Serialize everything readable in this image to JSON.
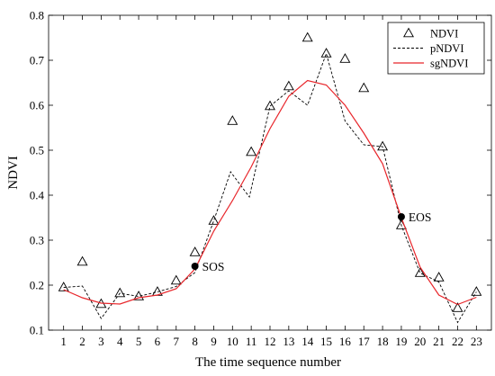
{
  "chart_data": {
    "type": "line",
    "xlabel": "The time sequence number",
    "ylabel": "NDVI",
    "xlim": [
      0.2,
      23.8
    ],
    "ylim": [
      0.1,
      0.8
    ],
    "x_ticks": [
      1,
      2,
      3,
      4,
      5,
      6,
      7,
      8,
      9,
      10,
      11,
      12,
      13,
      14,
      15,
      16,
      17,
      18,
      19,
      20,
      21,
      22,
      23
    ],
    "y_ticks": [
      0.1,
      0.2,
      0.3,
      0.4,
      0.5,
      0.6,
      0.7,
      0.8
    ],
    "y_tick_labels": [
      "0.1",
      "0.2",
      "0.3",
      "0.4",
      "0.5",
      "0.6",
      "0.7",
      "0.8"
    ],
    "grid": false,
    "legend_position": "top-right",
    "series": [
      {
        "name": "NDVI",
        "style": "triangle-markers",
        "color": "#000000",
        "x": [
          1,
          2,
          3,
          4,
          5,
          6,
          7,
          8,
          9,
          10,
          11,
          12,
          13,
          14,
          15,
          16,
          17,
          18,
          19,
          20,
          21,
          22,
          23
        ],
        "values": [
          0.195,
          0.252,
          0.158,
          0.182,
          0.175,
          0.185,
          0.21,
          0.273,
          0.343,
          0.565,
          0.496,
          0.598,
          0.642,
          0.75,
          0.715,
          0.703,
          0.638,
          0.508,
          0.333,
          0.227,
          0.217,
          0.149,
          0.185
        ]
      },
      {
        "name": "pNDVI",
        "style": "dashed",
        "color": "#000000",
        "x": [
          1,
          2,
          3,
          4,
          5,
          6,
          7,
          8,
          9,
          9.9,
          10.9,
          12,
          13,
          14,
          15,
          16,
          17,
          18,
          19,
          20,
          21,
          22,
          23
        ],
        "values": [
          0.195,
          0.198,
          0.126,
          0.182,
          0.175,
          0.185,
          0.197,
          0.228,
          0.343,
          0.452,
          0.396,
          0.598,
          0.632,
          0.6,
          0.715,
          0.565,
          0.512,
          0.508,
          0.333,
          0.227,
          0.207,
          0.117,
          0.185
        ]
      },
      {
        "name": "sgNDVI",
        "style": "solid",
        "color": "#e8262b",
        "x": [
          1,
          2,
          3,
          4,
          5,
          6,
          7,
          8,
          9,
          10,
          11,
          12,
          13,
          14,
          15,
          16,
          17,
          18,
          19,
          20,
          21,
          22,
          23
        ],
        "values": [
          0.19,
          0.172,
          0.16,
          0.158,
          0.172,
          0.178,
          0.192,
          0.236,
          0.32,
          0.388,
          0.463,
          0.548,
          0.62,
          0.655,
          0.645,
          0.6,
          0.538,
          0.47,
          0.35,
          0.24,
          0.178,
          0.157,
          0.173
        ]
      }
    ],
    "annotations": [
      {
        "label": "SOS",
        "x": 8,
        "y": 0.242,
        "text_side": "right"
      },
      {
        "label": "EOS",
        "x": 19,
        "y": 0.352,
        "text_side": "right"
      }
    ]
  }
}
